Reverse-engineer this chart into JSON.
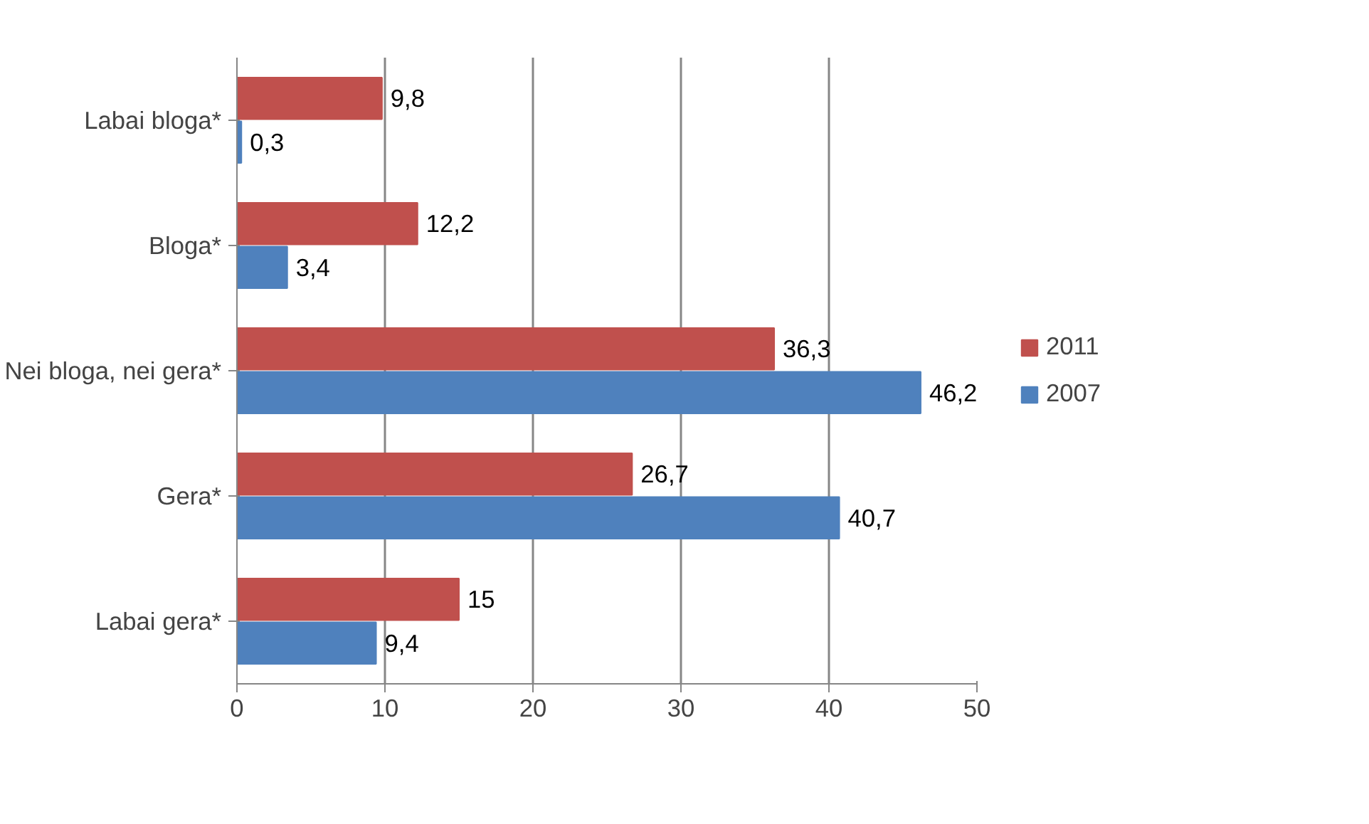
{
  "chart_data": {
    "type": "bar",
    "orientation": "horizontal",
    "categories": [
      "Labai bloga*",
      "Bloga*",
      "Nei bloga, nei gera*",
      "Gera*",
      "Labai gera*"
    ],
    "series": [
      {
        "name": "2011",
        "color": "#c0504d",
        "values": [
          9.8,
          12.2,
          36.3,
          26.7,
          15
        ],
        "value_labels": [
          "9,8",
          "12,2",
          "36,3",
          "26,7",
          "15"
        ]
      },
      {
        "name": "2007",
        "color": "#4f81bd",
        "values": [
          0.3,
          3.4,
          46.2,
          40.7,
          9.4
        ],
        "value_labels": [
          "0,3",
          "3,4",
          "46,2",
          "40,7",
          "9,4"
        ]
      }
    ],
    "xlim": [
      0,
      50
    ],
    "xticks": [
      0,
      10,
      20,
      30,
      40,
      50
    ],
    "grid": "x",
    "legend": "right"
  }
}
